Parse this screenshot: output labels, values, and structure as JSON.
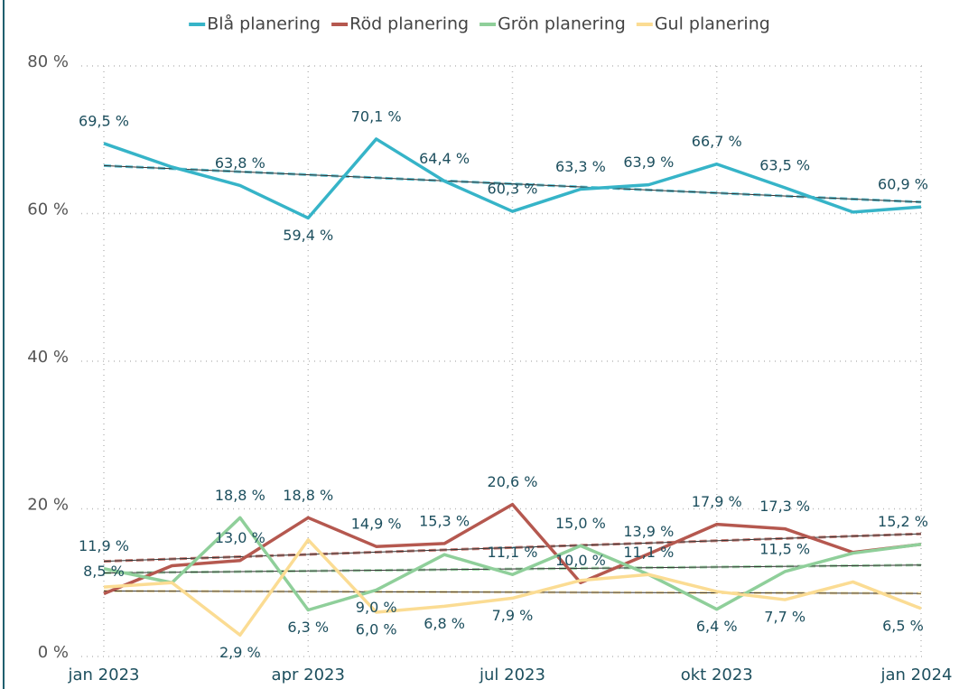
{
  "chart_data": {
    "type": "line",
    "categories": [
      "jan 2023",
      null,
      null,
      "apr 2023",
      null,
      null,
      "jul 2023",
      null,
      null,
      "okt 2023",
      null,
      null,
      "jan 2024"
    ],
    "series": [
      {
        "name": "Blå planering",
        "color": "#36b4c8",
        "values": [
          69.5,
          66.3,
          63.8,
          59.4,
          70.1,
          64.4,
          60.3,
          63.3,
          63.9,
          66.7,
          63.5,
          60.2,
          60.9
        ],
        "value_labels": [
          "69,5 %",
          null,
          "63,8 %",
          "59,4 %",
          "70,1 %",
          "64,4 %",
          "60,3 %",
          "63,3 %",
          "63,9 %",
          "66,7 %",
          "63,5 %",
          null,
          "60,9 %"
        ]
      },
      {
        "name": "Röd planering",
        "color": "#b5584f",
        "values": [
          8.5,
          12.3,
          13.0,
          18.8,
          14.9,
          15.3,
          20.6,
          10.0,
          13.9,
          17.9,
          17.3,
          14.1,
          15.2
        ],
        "value_labels": [
          "8,5 %",
          null,
          "13,0 %",
          "18,8 %",
          "14,9 %",
          "15,3 %",
          "20,6 %",
          "10,0 %",
          "13,9 %",
          "17,9 %",
          "17,3 %",
          null,
          "15,2 %"
        ]
      },
      {
        "name": "Grön planering",
        "color": "#8fcf9a",
        "values": [
          11.9,
          10.0,
          18.8,
          6.3,
          9.0,
          13.8,
          11.1,
          15.0,
          11.1,
          6.4,
          11.5,
          14.0,
          15.2
        ],
        "value_labels": [
          "11,9 %",
          null,
          "18,8 %",
          "6,3 %",
          "9,0 %",
          null,
          "11,1 %",
          "15,0 %",
          "11,1 %",
          "6,4 %",
          "11,5 %",
          null,
          null
        ]
      },
      {
        "name": "Gul planering",
        "color": "#fbdc93",
        "values": [
          9.4,
          10.0,
          2.9,
          15.8,
          6.0,
          6.8,
          7.9,
          10.3,
          11.1,
          8.8,
          7.7,
          10.1,
          6.5
        ],
        "value_labels": [
          null,
          null,
          "2,9 %",
          null,
          "6,0 %",
          "6,8 %",
          "7,9 %",
          null,
          null,
          null,
          "7,7 %",
          null,
          "6,5 %"
        ]
      }
    ],
    "ylim": [
      0,
      80
    ],
    "yticks": [
      {
        "value": 0,
        "label": "0 %"
      },
      {
        "value": 20,
        "label": "20 %"
      },
      {
        "value": 40,
        "label": "40 %"
      },
      {
        "value": 60,
        "label": "60 %"
      },
      {
        "value": 80,
        "label": "80 %"
      }
    ],
    "grid": true,
    "legend": "top",
    "trendline": true
  }
}
